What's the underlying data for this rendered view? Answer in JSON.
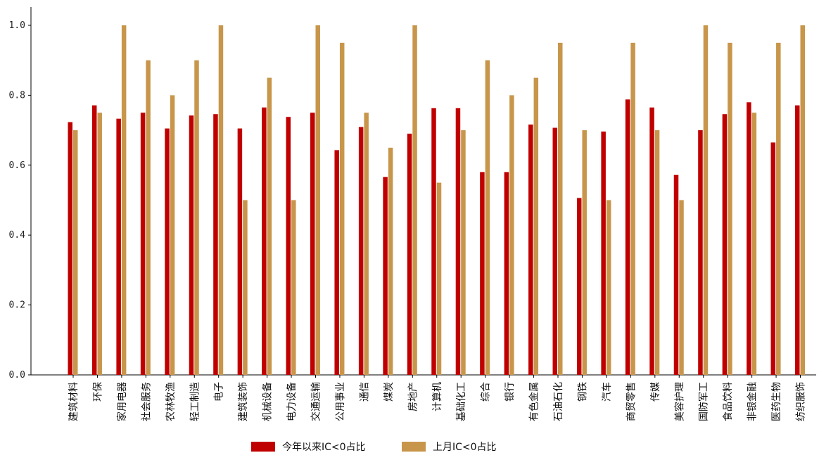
{
  "chart_data": {
    "type": "bar",
    "title": "",
    "xlabel": "",
    "ylabel": "",
    "ylim": [
      0,
      1.05
    ],
    "yticks": [
      "0.0",
      "0.2",
      "0.4",
      "0.6",
      "0.8",
      "1.0"
    ],
    "grid": false,
    "legend_position": "bottom-center",
    "categories": [
      "建筑材料",
      "环保",
      "家用电器",
      "社会服务",
      "农林牧渔",
      "轻工制造",
      "电子",
      "建筑装饰",
      "机械设备",
      "电力设备",
      "交通运输",
      "公用事业",
      "通信",
      "煤炭",
      "房地产",
      "计算机",
      "基础化工",
      "综合",
      "银行",
      "有色金属",
      "石油石化",
      "钢铁",
      "汽车",
      "商贸零售",
      "传媒",
      "美容护理",
      "国防军工",
      "食品饮料",
      "非银金融",
      "医药生物",
      "纺织服饰"
    ],
    "series": [
      {
        "name": "今年以来IC<0占比",
        "color": "#c00000",
        "values": [
          0.723,
          0.771,
          0.733,
          0.75,
          0.705,
          0.742,
          0.746,
          0.705,
          0.765,
          0.738,
          0.75,
          0.643,
          0.709,
          0.566,
          0.69,
          0.763,
          0.763,
          0.58,
          0.58,
          0.716,
          0.707,
          0.506,
          0.696,
          0.788,
          0.765,
          0.572,
          0.7,
          0.746,
          0.78,
          0.665,
          0.771
        ]
      },
      {
        "name": "上月IC<0占比",
        "color": "#c8964b",
        "values": [
          0.7,
          0.75,
          1.0,
          0.9,
          0.8,
          0.9,
          1.0,
          0.5,
          0.85,
          0.5,
          1.0,
          0.95,
          0.75,
          0.65,
          1.0,
          0.55,
          0.7,
          0.9,
          0.8,
          0.85,
          0.95,
          0.7,
          0.5,
          0.95,
          0.7,
          0.5,
          1.0,
          0.95,
          0.75,
          0.95,
          1.0
        ]
      }
    ]
  }
}
